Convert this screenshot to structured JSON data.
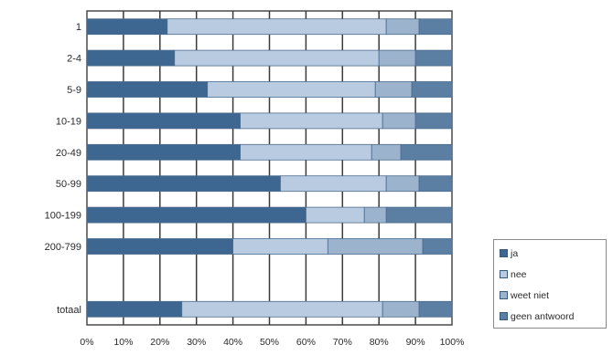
{
  "chart_data": {
    "type": "bar",
    "orientation": "horizontal",
    "stacked": true,
    "categories": [
      "1",
      "2-4",
      "5-9",
      "10-19",
      "20-49",
      "50-99",
      "100-199",
      "200-799",
      "",
      "totaal"
    ],
    "series": [
      {
        "name": "ja",
        "color": "#3d6690",
        "values": [
          22,
          24,
          33,
          42,
          42,
          53,
          60,
          40,
          null,
          26
        ]
      },
      {
        "name": "nee",
        "color": "#b9cbe0",
        "values": [
          60,
          56,
          46,
          39,
          36,
          29,
          16,
          26,
          null,
          55
        ]
      },
      {
        "name": "weet niet",
        "color": "#9bb3cc",
        "values": [
          9,
          10,
          10,
          9,
          8,
          9,
          6,
          26,
          null,
          10
        ]
      },
      {
        "name": "geen antwoord",
        "color": "#5b7ea3",
        "values": [
          9,
          10,
          11,
          10,
          14,
          9,
          18,
          8,
          null,
          9
        ]
      }
    ],
    "xaxis": {
      "ticks": [
        "0%",
        "10%",
        "20%",
        "30%",
        "40%",
        "50%",
        "60%",
        "70%",
        "80%",
        "90%",
        "100%"
      ],
      "range": [
        0,
        100
      ]
    },
    "grid": true,
    "legend_position": "bottom-right"
  }
}
